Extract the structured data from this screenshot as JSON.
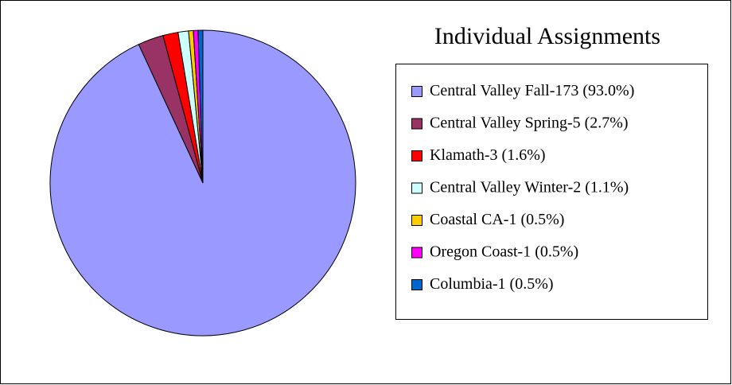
{
  "chart_data": {
    "type": "pie",
    "title": "Individual Assignments",
    "categories": [
      "Central Valley Fall-173",
      "Central Valley Spring-5",
      "Klamath-3",
      "Central Valley Winter-2",
      "Coastal CA-1",
      "Oregon Coast-1",
      "Columbia-1"
    ],
    "values": [
      93.0,
      2.7,
      1.6,
      1.1,
      0.5,
      0.5,
      0.5
    ],
    "value_labels": [
      "(93.0%)",
      "(2.7%)",
      "(1.6%)",
      "(1.1%)",
      "(0.5%)",
      "(0.5%)",
      "(0.5%)"
    ],
    "colors": [
      "#9999ff",
      "#993366",
      "#ff0000",
      "#ccffff",
      "#ffcc00",
      "#ff00ff",
      "#0066cc"
    ],
    "legend": "right"
  }
}
